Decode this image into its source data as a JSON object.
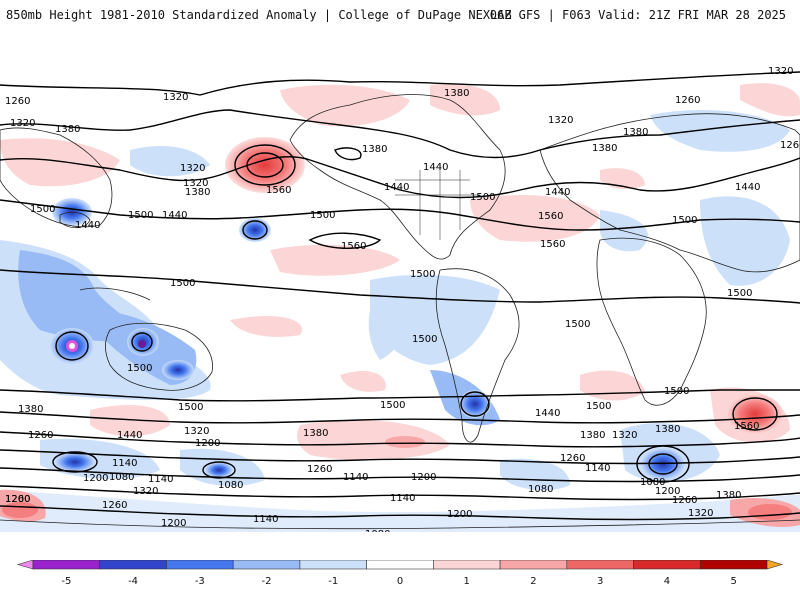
{
  "header": {
    "title": "850mb Height 1981-2010 Standardized Anomaly | College of DuPage NEXLAB",
    "run_info": "06Z GFS | F063 Valid: 21Z FRI MAR 28 2025"
  },
  "map": {
    "contour_labels": [
      "1320",
      "1260",
      "1320",
      "1380",
      "1380",
      "1320",
      "1380",
      "1320",
      "1260",
      "1260",
      "1440",
      "1320",
      "1500",
      "1380",
      "1440",
      "1320",
      "1380",
      "1440",
      "1380",
      "1500",
      "1440",
      "1500",
      "1560",
      "1440",
      "1500",
      "1560",
      "1440",
      "1500",
      "1560",
      "1560",
      "1500",
      "1500",
      "1500",
      "1500",
      "1500",
      "1500",
      "1500",
      "1500",
      "1380",
      "1440",
      "1500",
      "1500",
      "1380",
      "1440",
      "1380",
      "1320",
      "1260",
      "1200",
      "1320",
      "1380",
      "1260",
      "1200",
      "1140",
      "1080",
      "1200",
      "1140",
      "1140",
      "1080",
      "1320",
      "1260",
      "1200",
      "1080",
      "1140",
      "1200",
      "1140",
      "1080",
      "1200",
      "1140",
      "1260",
      "1200",
      "1260",
      "1320",
      "1260",
      "1560",
      "1380",
      "1080"
    ]
  },
  "colorbar": {
    "tick_labels": [
      "-5",
      "-4",
      "-3",
      "-2",
      "-1",
      "0",
      "1",
      "2",
      "3",
      "4",
      "5"
    ],
    "colors": [
      "#ee88ee",
      "#9922cc",
      "#3344cc",
      "#4477ee",
      "#99bbf5",
      "#cce0fa",
      "#ffffff",
      "#fcd6d6",
      "#f7a7a7",
      "#ef6868",
      "#d82a2a",
      "#b00000",
      "#f5a623"
    ]
  }
}
